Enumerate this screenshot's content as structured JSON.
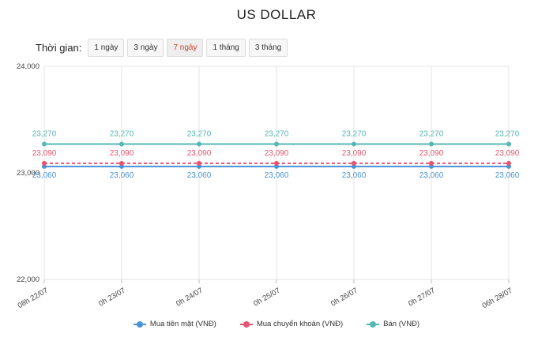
{
  "header": {
    "title": "US DOLLAR"
  },
  "range": {
    "label": "Thời gian:",
    "options": [
      "1 ngày",
      "3 ngày",
      "7 ngày",
      "1 tháng",
      "3 tháng"
    ],
    "selected_index": 2
  },
  "colors": {
    "active_option": "#c9442a",
    "grid": "#e6e6e6"
  },
  "chart_data": {
    "type": "line",
    "categories": [
      "08h 22/07",
      "0h 23/07",
      "0h 24/07",
      "0h 25/07",
      "0h 26/07",
      "0h 27/07",
      "06h 28/07"
    ],
    "ylim": [
      22000,
      24000
    ],
    "yticks": [
      "22,000",
      "23,000",
      "24,000"
    ],
    "grid": true,
    "legend_position": "bottom",
    "series": [
      {
        "name": "Mua tiền mặt (VNĐ)",
        "color": "#4a93d4",
        "values": [
          23060,
          23060,
          23060,
          23060,
          23060,
          23060,
          23060
        ],
        "value_labels": [
          "23,060",
          "23,060",
          "23,060",
          "23,060",
          "23,060",
          "23,060",
          "23,060"
        ],
        "dashed": false
      },
      {
        "name": "Mua chuyển khoản (VNĐ)",
        "color": "#e5566f",
        "values": [
          23090,
          23090,
          23090,
          23090,
          23090,
          23090,
          23090
        ],
        "value_labels": [
          "23,090",
          "23,090",
          "23,090",
          "23,090",
          "23,090",
          "23,090",
          "23,090"
        ],
        "dashed": true
      },
      {
        "name": "Bán (VNĐ)",
        "color": "#55b8b4",
        "values": [
          23270,
          23270,
          23270,
          23270,
          23270,
          23270,
          23270
        ],
        "value_labels": [
          "23,270",
          "23,270",
          "23,270",
          "23,270",
          "23,270",
          "23,270",
          "23,270"
        ],
        "dashed": false
      }
    ]
  }
}
